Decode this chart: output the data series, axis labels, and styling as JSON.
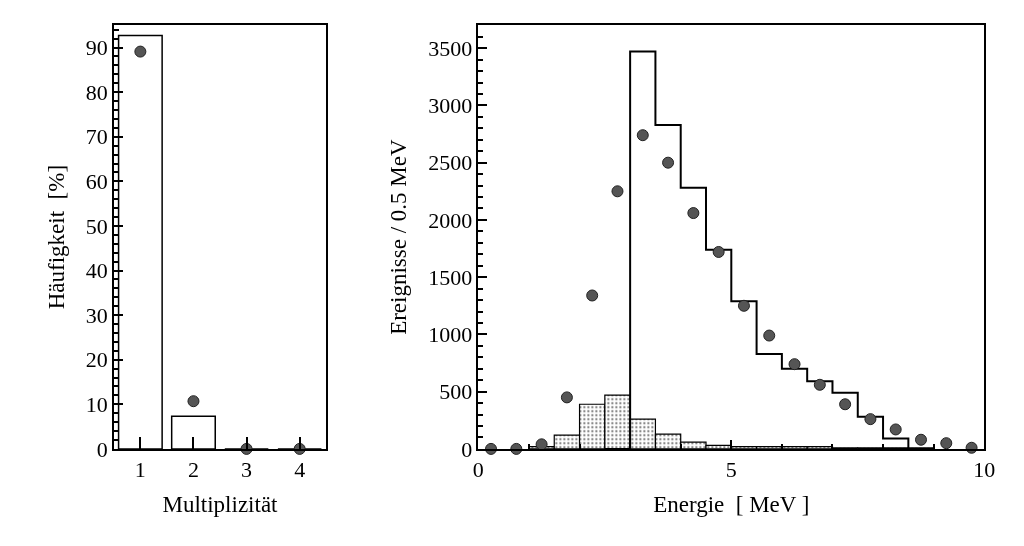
{
  "chart_data": [
    {
      "type": "bar",
      "categories": [
        "1",
        "2",
        "3",
        "4"
      ],
      "xlabel": "Multiplizität",
      "ylabel": "Häufigkeit  [%]",
      "series": [
        {
          "color": "#000000",
          "values": [
            92.7,
            7.3,
            0,
            0
          ]
        },
        {
          "type": "scatter",
          "color": "#555555",
          "values": [
            89.1,
            10.7,
            0,
            0
          ]
        }
      ],
      "ylim": [
        0,
        95
      ],
      "yticks": [
        0,
        {
          "value": 2,
          "label": null
        },
        {
          "value": 4,
          "label": null
        },
        {
          "value": 6,
          "label": null
        },
        {
          "value": 8,
          "label": null
        },
        10,
        {
          "value": 12,
          "label": null
        },
        {
          "value": 14,
          "label": null
        },
        {
          "value": 16,
          "label": null
        },
        {
          "value": 18,
          "label": null
        },
        20,
        {
          "value": 22,
          "label": null
        },
        {
          "value": 24,
          "label": null
        },
        {
          "value": 26,
          "label": null
        },
        {
          "value": 28,
          "label": null
        },
        30,
        {
          "value": 32,
          "label": null
        },
        {
          "value": 34,
          "label": null
        },
        {
          "value": 36,
          "label": null
        },
        {
          "value": 38,
          "label": null
        },
        40,
        {
          "value": 42,
          "label": null
        },
        {
          "value": 44,
          "label": null
        },
        {
          "value": 46,
          "label": null
        },
        {
          "value": 48,
          "label": null
        },
        50,
        {
          "value": 52,
          "label": null
        },
        {
          "value": 54,
          "label": null
        },
        {
          "value": 56,
          "label": null
        },
        {
          "value": 58,
          "label": null
        },
        60,
        {
          "value": 62,
          "label": null
        },
        {
          "value": 64,
          "label": null
        },
        {
          "value": 66,
          "label": null
        },
        {
          "value": 68,
          "label": null
        },
        70,
        {
          "value": 72,
          "label": null
        },
        {
          "value": 74,
          "label": null
        },
        {
          "value": 76,
          "label": null
        },
        {
          "value": 78,
          "label": null
        },
        80,
        {
          "value": 82,
          "label": null
        },
        {
          "value": 84,
          "label": null
        },
        {
          "value": 86,
          "label": null
        },
        {
          "value": 88,
          "label": null
        },
        90,
        {
          "value": 92,
          "label": null
        },
        {
          "value": 94,
          "label": null
        }
      ],
      "marker": "circle"
    },
    {
      "type": "histogram",
      "xlabel": "Energie  [ MeV ]",
      "ylabel": "Ereignisse / 0.5 MeV",
      "bins": [
        0,
        0.5,
        1,
        1.5,
        2,
        2.5,
        3,
        3.5,
        4,
        4.5,
        5,
        5.5,
        6,
        6.5,
        7,
        7.5,
        8,
        8.5,
        9,
        9.5,
        10
      ],
      "series": [
        {
          "type": "step",
          "marker": "none",
          "color": "#000000",
          "x": [
            2.5,
            3,
            3.5,
            4,
            4.5,
            5,
            5.5,
            6,
            6.5,
            7,
            7.5,
            8,
            8.5
          ],
          "values": [
            0,
            3470,
            2830,
            2280,
            1740,
            1290,
            830,
            700,
            590,
            490,
            280,
            90,
            0
          ]
        },
        {
          "color": "#000000",
          "values": [
            null,
            null,
            20,
            120,
            390,
            470,
            260,
            130,
            60,
            30,
            20,
            20,
            20,
            20,
            10,
            10,
            10,
            10,
            null,
            null
          ]
        },
        {
          "type": "scatter",
          "color": "#555555",
          "x": [
            0.25,
            0.75,
            1.25,
            1.75,
            2.25,
            2.75,
            3.25,
            3.75,
            4.25,
            4.75,
            5.25,
            5.75,
            6.25,
            6.75,
            7.25,
            7.75,
            8.25,
            8.75,
            9.25,
            9.75
          ],
          "values": [
            0,
            0,
            40,
            450,
            1340,
            2250,
            2740,
            2500,
            2060,
            1720,
            1250,
            990,
            740,
            560,
            390,
            260,
            170,
            80,
            50,
            10
          ]
        }
      ],
      "xlim": [
        0,
        10
      ],
      "xticks": [
        0,
        {
          "value": 1,
          "label": null
        },
        {
          "value": 2,
          "label": null
        },
        {
          "value": 3,
          "label": null
        },
        {
          "value": 4,
          "label": null
        },
        5,
        {
          "value": 6,
          "label": null
        },
        {
          "value": 7,
          "label": null
        },
        {
          "value": 8,
          "label": null
        },
        {
          "value": 9,
          "label": null
        },
        10
      ],
      "ylim": [
        0,
        3700
      ],
      "yticks": [
        0,
        {
          "value": 100,
          "label": null
        },
        {
          "value": 200,
          "label": null
        },
        {
          "value": 300,
          "label": null
        },
        {
          "value": 400,
          "label": null
        },
        500,
        {
          "value": 600,
          "label": null
        },
        {
          "value": 700,
          "label": null
        },
        {
          "value": 800,
          "label": null
        },
        {
          "value": 900,
          "label": null
        },
        1000,
        {
          "value": 1100,
          "label": null
        },
        {
          "value": 1200,
          "label": null
        },
        {
          "value": 1300,
          "label": null
        },
        {
          "value": 1400,
          "label": null
        },
        1500,
        {
          "value": 1600,
          "label": null
        },
        {
          "value": 1700,
          "label": null
        },
        {
          "value": 1800,
          "label": null
        },
        {
          "value": 1900,
          "label": null
        },
        2000,
        {
          "value": 2100,
          "label": null
        },
        {
          "value": 2200,
          "label": null
        },
        {
          "value": 2300,
          "label": null
        },
        {
          "value": 2400,
          "label": null
        },
        2500,
        {
          "value": 2600,
          "label": null
        },
        {
          "value": 2700,
          "label": null
        },
        {
          "value": 2800,
          "label": null
        },
        {
          "value": 2900,
          "label": null
        },
        3000,
        {
          "value": 3100,
          "label": null
        },
        {
          "value": 3200,
          "label": null
        },
        {
          "value": 3300,
          "label": null
        },
        {
          "value": 3400,
          "label": null
        },
        3500,
        {
          "value": 3600,
          "label": null
        }
      ],
      "marker": "circle"
    }
  ]
}
